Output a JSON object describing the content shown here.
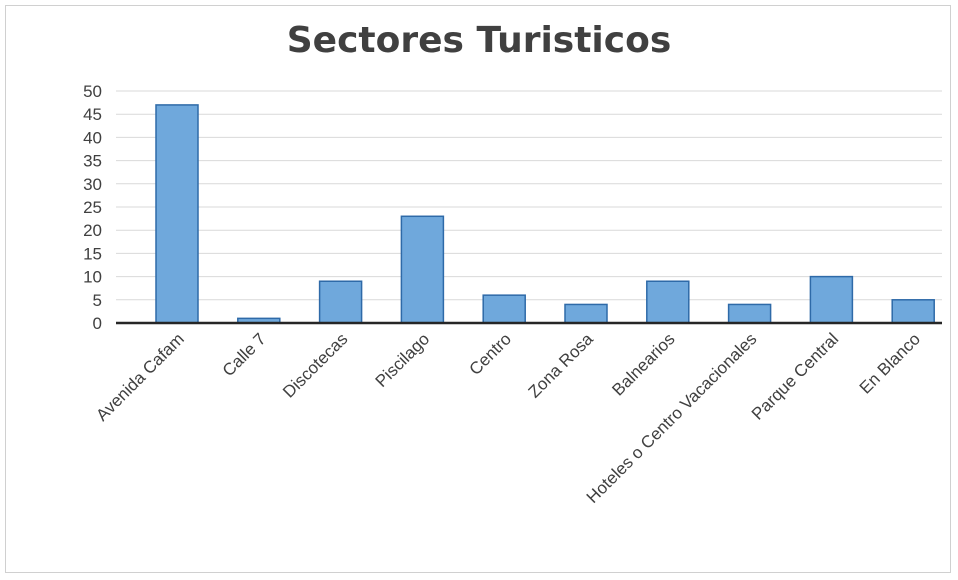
{
  "chart_data": {
    "type": "bar",
    "title": "Sectores Turisticos",
    "categories": [
      "Avenida Cafam",
      "Calle 7",
      "Discotecas",
      "Piscilago",
      "Centro",
      "Zona Rosa",
      "Balnearios",
      "Hoteles o Centro Vacacionales",
      "Parque Central",
      "En Blanco"
    ],
    "values": [
      47,
      1,
      9,
      23,
      6,
      4,
      9,
      4,
      10,
      5
    ],
    "ylim": [
      0,
      50
    ],
    "yticks": [
      0,
      5,
      10,
      15,
      20,
      25,
      30,
      35,
      40,
      45,
      50
    ],
    "grid": true,
    "legend": "none",
    "colors": {
      "bar_fill": "#6fa8dc",
      "bar_edge": "#2e6aa8",
      "text": "#404040",
      "grid": "#d9d9d9"
    }
  }
}
